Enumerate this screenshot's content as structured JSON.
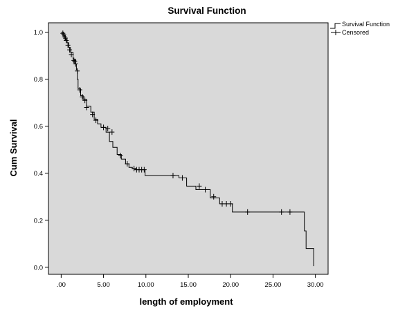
{
  "chart_data": {
    "type": "line",
    "title": "Survival Function",
    "xlabel": "length of employment",
    "ylabel": "Cum Survival",
    "xlim": [
      -1.5,
      31.5
    ],
    "ylim": [
      -0.03,
      1.04
    ],
    "x_ticks": [
      0,
      5,
      10,
      15,
      20,
      25,
      30
    ],
    "x_tick_labels": [
      ".00",
      "5.00",
      "10.00",
      "15.00",
      "20.00",
      "25.00",
      "30.00"
    ],
    "y_ticks": [
      0.0,
      0.2,
      0.4,
      0.6,
      0.8,
      1.0
    ],
    "y_tick_labels": [
      "0.0",
      "0.2",
      "0.4",
      "0.6",
      "0.8",
      "1.0"
    ],
    "plot_background": "#d9d9d9",
    "line_color": "#000000",
    "grid": false,
    "legend_position": "top-right-outside",
    "legend": [
      "Survival Function",
      "Censored"
    ],
    "series": [
      {
        "name": "Survival Function",
        "step": true,
        "x": [
          0,
          0.3,
          0.5,
          0.7,
          0.9,
          1.1,
          1.4,
          1.7,
          1.8,
          1.9,
          2.0,
          2.3,
          2.6,
          3.0,
          3.5,
          3.9,
          4.3,
          4.7,
          5.3,
          5.7,
          6.1,
          6.6,
          7.1,
          7.6,
          8.0,
          8.4,
          8.8,
          9.9,
          13.9,
          14.8,
          15.9,
          17.6,
          18.7,
          20.2,
          28.7,
          28.9,
          29.3,
          29.8
        ],
        "y": [
          1.0,
          0.985,
          0.97,
          0.955,
          0.935,
          0.915,
          0.885,
          0.865,
          0.84,
          0.8,
          0.76,
          0.73,
          0.715,
          0.685,
          0.66,
          0.63,
          0.61,
          0.595,
          0.575,
          0.535,
          0.51,
          0.48,
          0.46,
          0.44,
          0.425,
          0.42,
          0.415,
          0.39,
          0.38,
          0.345,
          0.33,
          0.295,
          0.27,
          0.235,
          0.155,
          0.08,
          0.08,
          0.005
        ]
      }
    ],
    "censored": {
      "name": "Censored",
      "x": [
        0.2,
        0.3,
        0.4,
        0.5,
        0.6,
        0.8,
        1.0,
        1.2,
        1.5,
        1.6,
        1.7,
        1.9,
        2.2,
        2.5,
        2.8,
        3.0,
        3.7,
        4.1,
        5.0,
        5.5,
        6.0,
        7.0,
        7.8,
        8.6,
        8.9,
        9.2,
        9.5,
        9.8,
        13.2,
        14.3,
        16.3,
        17.0,
        18.0,
        19.0,
        19.5,
        20.0,
        22.0,
        26.0,
        27.0
      ],
      "y": [
        0.995,
        0.99,
        0.98,
        0.975,
        0.965,
        0.945,
        0.925,
        0.905,
        0.88,
        0.875,
        0.865,
        0.835,
        0.755,
        0.725,
        0.71,
        0.68,
        0.65,
        0.625,
        0.595,
        0.59,
        0.575,
        0.475,
        0.44,
        0.42,
        0.415,
        0.415,
        0.415,
        0.415,
        0.39,
        0.38,
        0.345,
        0.33,
        0.3,
        0.27,
        0.27,
        0.27,
        0.235,
        0.235,
        0.235
      ]
    }
  }
}
